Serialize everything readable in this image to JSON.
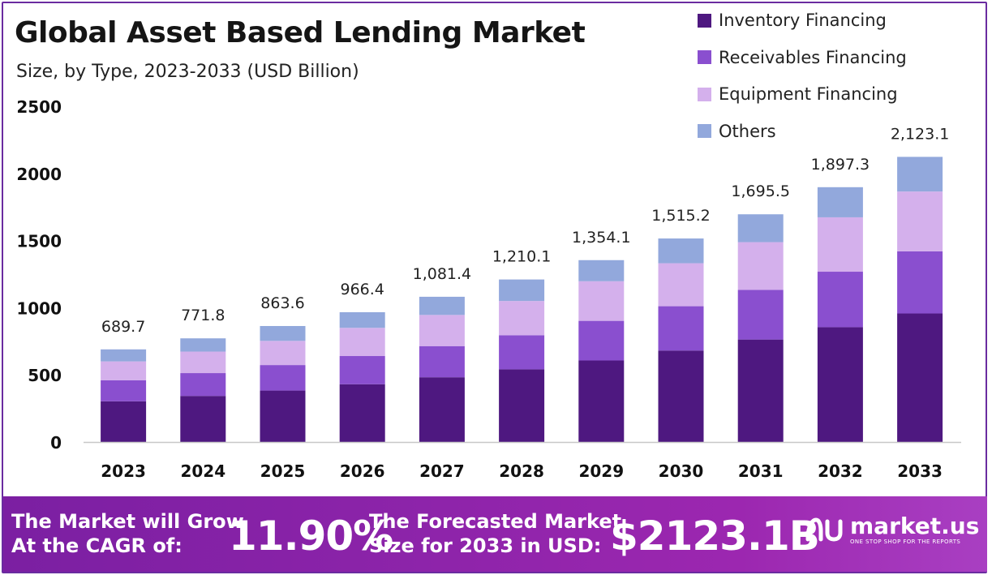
{
  "header": {
    "title": "Global Asset Based Lending Market",
    "subtitle": "Size, by Type, 2023-2033 (USD Billion)"
  },
  "colors": {
    "inventory": "#4e1880",
    "receivables": "#8a4fcf",
    "equipment": "#d4b0ec",
    "others": "#92a8dc",
    "banner": "#8e24aa"
  },
  "chart_data": {
    "type": "bar",
    "stacked": true,
    "categories": [
      "2023",
      "2024",
      "2025",
      "2026",
      "2027",
      "2028",
      "2029",
      "2030",
      "2031",
      "2032",
      "2033"
    ],
    "series": [
      {
        "name": "Inventory Financing",
        "values": [
          303,
          343,
          383,
          430,
          482,
          541,
          607,
          681,
          763,
          855,
          957
        ]
      },
      {
        "name": "Receivables Financing",
        "values": [
          157,
          170,
          190,
          210,
          232,
          254,
          295,
          330,
          370,
          413,
          463
        ]
      },
      {
        "name": "Equipment Financing",
        "values": [
          140,
          160,
          180,
          210,
          232,
          255,
          295,
          320,
          355,
          405,
          445
        ]
      },
      {
        "name": "Others",
        "values": [
          89.7,
          98.8,
          110.6,
          116.4,
          135.4,
          160.1,
          157.1,
          184.2,
          207.5,
          224.3,
          258.1
        ]
      }
    ],
    "totals": [
      "689.7",
      "771.8",
      "863.6",
      "966.4",
      "1,081.4",
      "1,210.1",
      "1,354.1",
      "1,515.2",
      "1,695.5",
      "1,897.3",
      "2,123.1"
    ],
    "y_ticks": [
      "0",
      "500",
      "1000",
      "1500",
      "2000",
      "2500"
    ],
    "ylim": [
      0,
      2500
    ],
    "xlabel": "",
    "ylabel": "",
    "legend_position": "top-right",
    "grid": false
  },
  "banner": {
    "cagr_label_line1": "The Market will Grow",
    "cagr_label_line2": "At the CAGR of:",
    "cagr_value": "11.90%",
    "forecast_label_line1": "The Forecasted Market",
    "forecast_label_line2": "Size for 2033 in USD:",
    "forecast_value": "$2123.1B",
    "logo_name": "market.us",
    "logo_tagline": "ONE STOP SHOP FOR THE REPORTS"
  }
}
